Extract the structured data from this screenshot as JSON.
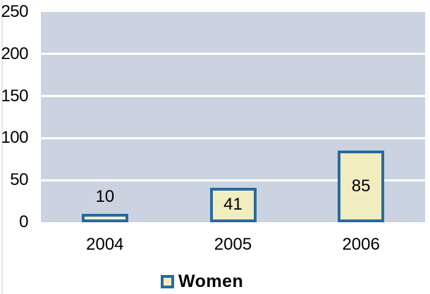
{
  "chart_data": {
    "type": "bar",
    "title": "",
    "categories": [
      "2004",
      "2005",
      "2006"
    ],
    "series": [
      {
        "name": "Women",
        "values": [
          10,
          41,
          85
        ]
      }
    ],
    "value_labels": [
      "10",
      "41",
      "85"
    ],
    "xlabel": "",
    "ylabel": "",
    "ylim": [
      0,
      250
    ],
    "yticks": [
      0,
      50,
      100,
      150,
      200,
      250
    ],
    "grid": true,
    "legend_position": "bottom",
    "colors": {
      "plot_background": "#ccd3e0",
      "gridline": "#ffffff",
      "bar_fill": "#f0eec0",
      "bar_border": "#2a6aa0",
      "text": "#000000"
    }
  },
  "legend": {
    "label": "Women"
  }
}
